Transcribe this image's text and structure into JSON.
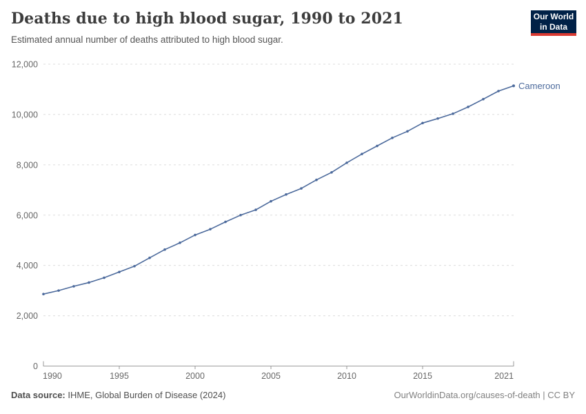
{
  "header": {
    "title": "Deaths due to high blood sugar, 1990 to 2021",
    "subtitle": "Estimated annual number of deaths attributed to high blood sugar.",
    "logo": {
      "line1": "Our World",
      "line2": "in Data"
    }
  },
  "footer": {
    "source_label": "Data source:",
    "source_text": " IHME, Global Burden of Disease (2024)",
    "link_text": "OurWorldinData.org/causes-of-death | CC BY"
  },
  "colors": {
    "line": "#4c6a9c",
    "entity_label": "#4c6a9c",
    "grid": "#dcdcdc",
    "axis": "#999999",
    "tick_text": "#666666",
    "logo_bg": "#002147",
    "logo_red": "#d93a32"
  },
  "chart_data": {
    "type": "line",
    "title": "Deaths due to high blood sugar, 1990 to 2021",
    "subtitle": "Estimated annual number of deaths attributed to high blood sugar.",
    "xlabel": "",
    "ylabel": "",
    "xlim": [
      1990,
      2021
    ],
    "ylim": [
      0,
      12000
    ],
    "x_ticks": [
      1990,
      1995,
      2000,
      2005,
      2010,
      2015,
      2021
    ],
    "y_ticks": [
      0,
      2000,
      4000,
      6000,
      8000,
      10000,
      12000
    ],
    "grid": "horizontal-dashed",
    "legend_position": "end-of-line-label",
    "series": [
      {
        "name": "Cameroon",
        "x": [
          1990,
          1991,
          1992,
          1993,
          1994,
          1995,
          1996,
          1997,
          1998,
          1999,
          2000,
          2001,
          2002,
          2003,
          2004,
          2005,
          2006,
          2007,
          2008,
          2009,
          2010,
          2011,
          2012,
          2013,
          2014,
          2015,
          2016,
          2017,
          2018,
          2019,
          2020,
          2021
        ],
        "values": [
          2860,
          3000,
          3170,
          3320,
          3510,
          3740,
          3970,
          4300,
          4630,
          4900,
          5210,
          5440,
          5730,
          6000,
          6210,
          6550,
          6820,
          7060,
          7400,
          7700,
          8080,
          8430,
          8750,
          9070,
          9330,
          9660,
          9840,
          10030,
          10300,
          10610,
          10930,
          11140
        ]
      }
    ]
  }
}
